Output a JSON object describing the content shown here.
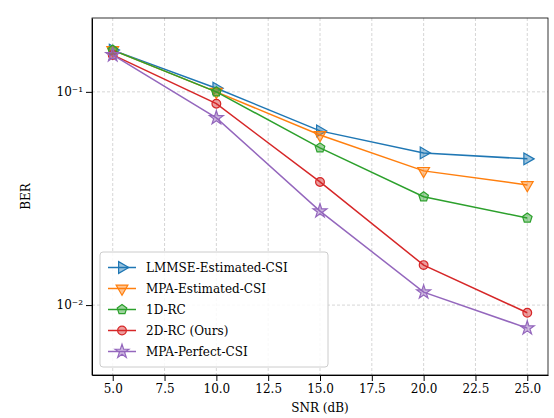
{
  "chart_data": {
    "type": "line",
    "x_label": "SNR (dB)",
    "y_label": "BER",
    "log": "y",
    "grid": true,
    "legend": "lower left",
    "x": [
      5,
      10,
      15,
      20,
      25
    ],
    "xlim": [
      4,
      26
    ],
    "xticks": [
      {
        "value": 5,
        "label": "5.0"
      },
      {
        "value": 7.5,
        "label": "7.5"
      },
      {
        "value": 10,
        "label": "10.0"
      },
      {
        "value": 12.5,
        "label": "12.5"
      },
      {
        "value": 15,
        "label": "15.0"
      },
      {
        "value": 17.5,
        "label": "17.5"
      },
      {
        "value": 20,
        "label": "20.0"
      },
      {
        "value": 22.5,
        "label": "22.5"
      },
      {
        "value": 25,
        "label": "25.0"
      }
    ],
    "ylim": [
      0.0047,
      0.222
    ],
    "yticks": [
      {
        "value": 0.01,
        "label": "10⁻²"
      },
      {
        "value": 0.1,
        "label": "10⁻¹"
      }
    ],
    "series": [
      {
        "name": "LMMSE-Estimated-CSI",
        "color": "#1f77b4",
        "marker": "triangle-right",
        "values": [
          0.157,
          0.104,
          0.0656,
          0.0517,
          0.0485
        ]
      },
      {
        "name": "MPA-Estimated-CSI",
        "color": "#ff7f0e",
        "marker": "triangle-down",
        "values": [
          0.157,
          0.1,
          0.0628,
          0.0426,
          0.0366
        ]
      },
      {
        "name": "1D-RC",
        "color": "#2ca02c",
        "marker": "pentagon",
        "values": [
          0.157,
          0.1,
          0.0546,
          0.0322,
          0.0256
        ]
      },
      {
        "name": "2D-RC (Ours)",
        "color": "#d62728",
        "marker": "circle",
        "values": [
          0.149,
          0.088,
          0.0378,
          0.0154,
          0.0092
        ]
      },
      {
        "name": "MPA-Perfect-CSI",
        "color": "#9467bd",
        "marker": "star",
        "values": [
          0.149,
          0.0755,
          0.0276,
          0.0115,
          0.0078
        ]
      }
    ]
  }
}
